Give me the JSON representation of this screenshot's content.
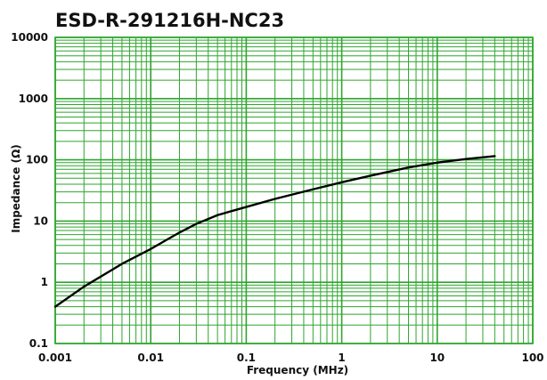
{
  "chart_data": {
    "type": "line",
    "title": "ESD-R-291216H-NC23",
    "xlabel": "Frequency (MHz)",
    "ylabel": "Impedance (Ω)",
    "x_scale": "log",
    "y_scale": "log",
    "xlim": [
      0.001,
      100
    ],
    "ylim": [
      0.1,
      10000
    ],
    "x_ticks": [
      "0.001",
      "0.01",
      "0.1",
      "1",
      "10",
      "100"
    ],
    "y_ticks": [
      "0.1",
      "1",
      "10",
      "100",
      "1000",
      "10000"
    ],
    "grid": true,
    "series": [
      {
        "values": [
          [
            0.001,
            0.4
          ],
          [
            0.002,
            0.85
          ],
          [
            0.005,
            2.0
          ],
          [
            0.01,
            3.5
          ],
          [
            0.02,
            6.5
          ],
          [
            0.03,
            9.0
          ],
          [
            0.05,
            12.5
          ],
          [
            0.1,
            17
          ],
          [
            0.2,
            23
          ],
          [
            0.5,
            33
          ],
          [
            1,
            43
          ],
          [
            2,
            55
          ],
          [
            5,
            75
          ],
          [
            10,
            90
          ],
          [
            20,
            103
          ],
          [
            40,
            115
          ]
        ]
      }
    ],
    "colors": {
      "grid": "#2ea52e",
      "line": "#000000"
    }
  }
}
